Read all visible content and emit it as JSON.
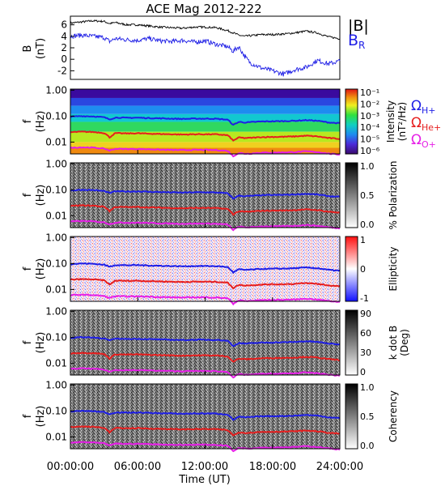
{
  "title": "ACE Mag 2012-222",
  "x_axis": {
    "label": "Time (UT)",
    "ticks": [
      "00:00:00",
      "06:00:00",
      "12:00:00",
      "18:00:00",
      "24:00:00"
    ],
    "range_hours": [
      0,
      24
    ]
  },
  "panel_b": {
    "ylabel_top": "B",
    "ylabel_bottom": "(nT)",
    "ticks": [
      "6",
      "4",
      "2",
      "0",
      "-2"
    ],
    "legend": [
      "|B|",
      "B",
      "R"
    ],
    "colors": {
      "B_total": "#000000",
      "B_R": "#1e1ee6"
    }
  },
  "freq_axis": {
    "label": "f",
    "unit": "(Hz)",
    "ticks": [
      "1.00",
      "0.10",
      "0.01"
    ],
    "range_hz": [
      0.0035,
      1.1
    ],
    "scale": "log"
  },
  "panels": [
    {
      "key": "intensity",
      "colorbar": "rainbow",
      "cb_label_1": "Intensity",
      "cb_label_2": "(nT²/Hz)",
      "cb_ticks": [
        "10⁻¹",
        "10⁻²",
        "10⁻³",
        "10⁻⁴",
        "10⁻⁵",
        "10⁻⁶"
      ],
      "gyro_legend": [
        {
          "base": "Ω",
          "sub": "H+",
          "color": "#1e1ee6"
        },
        {
          "base": "Ω",
          "sub": "He+",
          "color": "#e61e1e"
        },
        {
          "base": "Ω",
          "sub": "O+",
          "color": "#e61ee6"
        }
      ]
    },
    {
      "key": "polarization",
      "colorbar": "gray",
      "cb_label_1": "% Polarization",
      "cb_ticks": [
        "1.0",
        "0.5",
        "0.0"
      ]
    },
    {
      "key": "ellipticity",
      "colorbar": "bwr",
      "cb_label_1": "Ellipticity",
      "cb_ticks": [
        "1",
        "0",
        "-1"
      ]
    },
    {
      "key": "kdotb",
      "colorbar": "gray",
      "cb_label_1": "k dot B",
      "cb_label_2": "(Deg)",
      "cb_ticks": [
        "90",
        "60",
        "30",
        "0"
      ]
    },
    {
      "key": "coherency",
      "colorbar": "gray",
      "cb_label_1": "Coherency",
      "cb_ticks": [
        "1.0",
        "0.5",
        "0.0"
      ]
    }
  ],
  "chart_data": {
    "type": "line",
    "title": "ACE Mag 2012-222",
    "xlabel": "Time (UT)",
    "x_hours": [
      0,
      1,
      2,
      3,
      3.5,
      4,
      5,
      6,
      7,
      8,
      9,
      10,
      11,
      12,
      13,
      14,
      14.5,
      15,
      15.5,
      16,
      17,
      18,
      19,
      20,
      21,
      22,
      23,
      24
    ],
    "series": [
      {
        "name": "|B|",
        "unit": "nT",
        "values": [
          6.3,
          6.5,
          6.7,
          6.6,
          6.2,
          6.4,
          6.0,
          6.0,
          5.8,
          5.6,
          5.5,
          5.4,
          5.6,
          5.6,
          5.5,
          5.0,
          4.6,
          4.2,
          4.0,
          4.1,
          4.3,
          4.3,
          4.4,
          4.6,
          4.9,
          4.6,
          3.9,
          3.6
        ]
      },
      {
        "name": "BR",
        "unit": "nT",
        "values": [
          4.0,
          4.2,
          4.0,
          3.8,
          3.1,
          3.6,
          3.4,
          3.3,
          3.6,
          3.2,
          3.1,
          3.3,
          3.0,
          3.2,
          2.6,
          2.2,
          1.4,
          2.2,
          0.6,
          -0.6,
          -1.5,
          -2.0,
          -2.6,
          -1.8,
          -1.4,
          -0.2,
          -0.8,
          -0.3
        ]
      },
      {
        "name": "ΩH+",
        "unit": "Hz",
        "values": [
          0.095,
          0.1,
          0.098,
          0.09,
          0.075,
          0.088,
          0.086,
          0.087,
          0.084,
          0.082,
          0.08,
          0.078,
          0.08,
          0.08,
          0.079,
          0.073,
          0.045,
          0.06,
          0.057,
          0.058,
          0.062,
          0.063,
          0.064,
          0.066,
          0.07,
          0.066,
          0.057,
          0.053
        ]
      },
      {
        "name": "ΩHe+",
        "unit": "Hz",
        "values": [
          0.024,
          0.025,
          0.0245,
          0.0225,
          0.015,
          0.022,
          0.0215,
          0.0218,
          0.021,
          0.0205,
          0.02,
          0.0195,
          0.02,
          0.02,
          0.0198,
          0.0183,
          0.0112,
          0.015,
          0.0143,
          0.0145,
          0.0155,
          0.0158,
          0.016,
          0.0165,
          0.0175,
          0.0165,
          0.0143,
          0.0133
        ]
      },
      {
        "name": "ΩO+",
        "unit": "Hz",
        "values": [
          0.006,
          0.0063,
          0.0061,
          0.0056,
          0.0047,
          0.0055,
          0.0054,
          0.0054,
          0.0053,
          0.0051,
          0.005,
          0.0049,
          0.005,
          0.005,
          0.0049,
          0.0046,
          0.0028,
          0.0038,
          0.0036,
          0.0036,
          0.0039,
          0.0039,
          0.004,
          0.0041,
          0.0044,
          0.0041,
          0.0036,
          0.0033
        ]
      }
    ],
    "b_ylim": [
      -3.5,
      7.5
    ],
    "f_ylim": [
      0.0035,
      1.1
    ]
  }
}
